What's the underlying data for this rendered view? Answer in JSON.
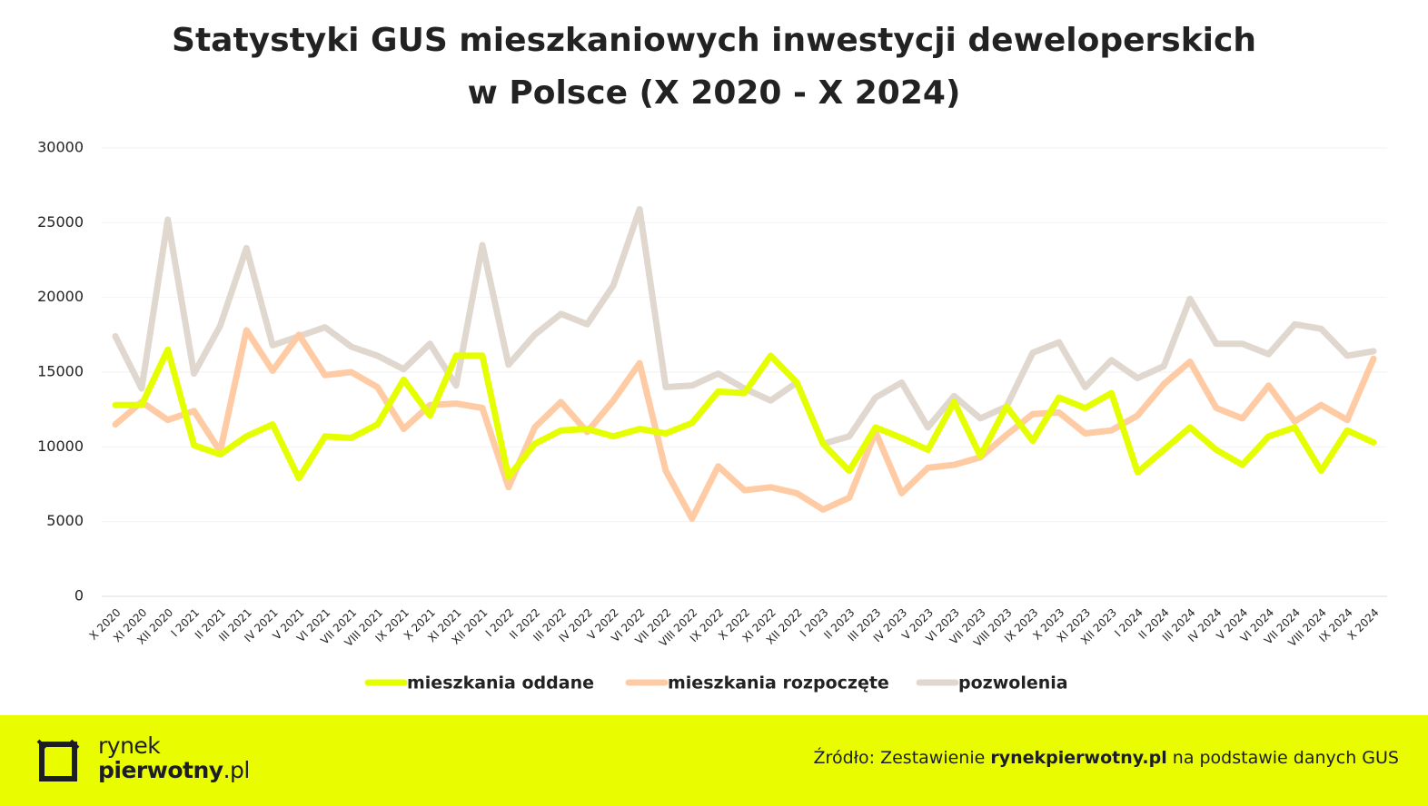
{
  "chart_data": {
    "type": "line",
    "title": [
      "Statystyki GUS mieszkaniowych inwestycji deweloperskich",
      "w Polsce (X 2020 - X 2024)"
    ],
    "categories": [
      "X 2020",
      "XI 2020",
      "XII 2020",
      "I 2021",
      "II 2021",
      "III 2021",
      "IV 2021",
      "V 2021",
      "VI 2021",
      "VII 2021",
      "VIII 2021",
      "IX 2021",
      "X 2021",
      "XI 2021",
      "XII 2021",
      "I 2022",
      "II 2022",
      "III 2022",
      "IV 2022",
      "V 2022",
      "VI 2022",
      "VII 2022",
      "VIII 2022",
      "IX 2022",
      "X 2022",
      "XI 2022",
      "XII 2022",
      "I 2023",
      "II 2023",
      "III 2023",
      "IV 2023",
      "V 2023",
      "VI 2023",
      "VII 2023",
      "VIII 2023",
      "IX 2023",
      "X 2023",
      "XI 2023",
      "XII 2023",
      "I 2024",
      "II 2024",
      "III 2024",
      "IV 2024",
      "V 2024",
      "VI 2024",
      "VII 2024",
      "VIII 2024",
      "IX 2024",
      "X 2024"
    ],
    "series": [
      {
        "name": "mieszkania oddane",
        "color": "#e6ff00",
        "values": [
          12800,
          12800,
          16500,
          10100,
          9500,
          10700,
          11500,
          7900,
          10700,
          10600,
          11500,
          14500,
          12100,
          16100,
          16100,
          8000,
          10200,
          11100,
          11200,
          10700,
          11200,
          10900,
          11600,
          13700,
          13600,
          16100,
          14300,
          10200,
          8400,
          11300,
          10600,
          9800,
          13000,
          9400,
          12700,
          10400,
          13300,
          12600,
          13600,
          8300,
          9800,
          11300,
          9800,
          8800,
          10700,
          11300,
          8400,
          11100,
          10300
        ]
      },
      {
        "name": "mieszkania rozpoczęte",
        "color": "#ffcba4",
        "values": [
          11500,
          13000,
          11800,
          12400,
          9700,
          17800,
          15100,
          17500,
          14800,
          15000,
          14000,
          11200,
          12800,
          12900,
          12600,
          7300,
          11300,
          13000,
          11000,
          13100,
          15600,
          8400,
          5200,
          8700,
          7100,
          7300,
          6900,
          5800,
          6600,
          11000,
          6900,
          8600,
          8800,
          9300,
          10800,
          12200,
          12300,
          10900,
          11100,
          12100,
          14200,
          15700,
          12600,
          11900,
          14100,
          11700,
          12800,
          11800,
          15900
        ]
      },
      {
        "name": "pozwolenia",
        "color": "#e0d7cf",
        "values": [
          17400,
          13900,
          25200,
          14900,
          18100,
          23300,
          16800,
          17400,
          18000,
          16700,
          16100,
          15200,
          16900,
          14100,
          23500,
          15500,
          17500,
          18900,
          18200,
          20800,
          25900,
          14000,
          14100,
          14900,
          13900,
          13100,
          14300,
          10200,
          10700,
          13300,
          14300,
          11300,
          13400,
          11900,
          12700,
          16300,
          17000,
          14000,
          15800,
          14600,
          15400,
          19900,
          16900,
          16900,
          16200,
          18200,
          17900,
          16100,
          16400
        ]
      }
    ],
    "ylim": [
      0,
      30000
    ],
    "yticks": [
      0,
      5000,
      10000,
      15000,
      20000,
      25000,
      30000
    ],
    "grid": true,
    "legend": "bottom"
  },
  "footer": {
    "logo": [
      "rynek",
      "pierwotny",
      ".pl"
    ],
    "source": [
      "Źródło: Zestawienie ",
      "rynekpierwotny.pl",
      " na podstawie danych GUS"
    ]
  }
}
